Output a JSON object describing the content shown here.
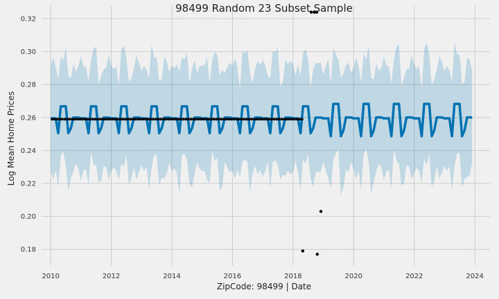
{
  "chart_data": {
    "type": "line",
    "title": "98499 Random 23 Subset Sample",
    "xlabel": "ZipCode: 98499 | Date",
    "ylabel": "Log Mean Home Prices",
    "xlim": [
      2009.7,
      2024.5
    ],
    "ylim": [
      0.17,
      0.328
    ],
    "xticks": [
      2010,
      2012,
      2014,
      2016,
      2018,
      2020,
      2022,
      2024
    ],
    "yticks": [
      0.18,
      0.2,
      0.22,
      0.24,
      0.26,
      0.28,
      0.3,
      0.32
    ],
    "grid": true,
    "colors": {
      "forecast": "#0072b2",
      "interval": "#0072b2",
      "observed": "#000000"
    },
    "forecast": {
      "start": 2010.0,
      "end": 2023.92,
      "step": 0.0833,
      "pattern": [
        0.2595,
        0.2595,
        0.2595,
        0.2505,
        0.2668,
        0.2668,
        0.2668,
        0.2505,
        0.2535,
        0.26,
        0.26,
        0.26
      ],
      "cycle_amplitude_growth": 0.9,
      "interval_halfwidth": 0.032,
      "interval_wiggle": 0.006
    },
    "observed": {
      "start": 2010.05,
      "end": 2018.35,
      "step": 0.0833,
      "value": 0.259,
      "outliers": [
        {
          "x": 2018.32,
          "y": 0.179
        },
        {
          "x": 2018.6,
          "y": 0.324
        },
        {
          "x": 2018.7,
          "y": 0.324
        },
        {
          "x": 2018.78,
          "y": 0.324
        },
        {
          "x": 2018.8,
          "y": 0.177
        },
        {
          "x": 2018.92,
          "y": 0.203
        }
      ]
    }
  }
}
